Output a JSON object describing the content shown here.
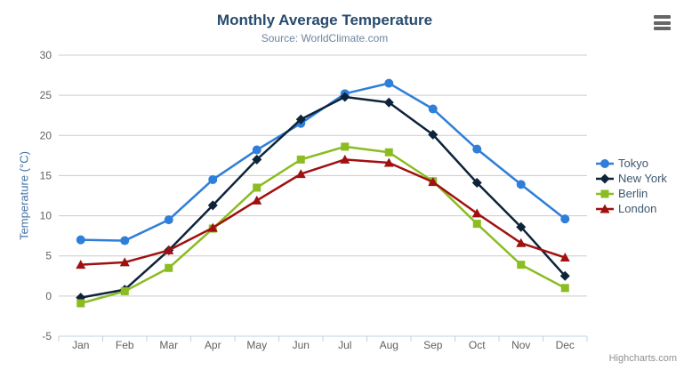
{
  "chart_data": {
    "type": "line",
    "title": "Monthly Average Temperature",
    "subtitle": "Source: WorldClimate.com",
    "xlabel": "",
    "ylabel": "Temperature (°C)",
    "categories": [
      "Jan",
      "Feb",
      "Mar",
      "Apr",
      "May",
      "Jun",
      "Jul",
      "Aug",
      "Sep",
      "Oct",
      "Nov",
      "Dec"
    ],
    "ylim": [
      -5,
      30
    ],
    "ytick_step": 5,
    "grid": true,
    "legend_position": "right",
    "series": [
      {
        "name": "Tokyo",
        "color": "#2f7ed8",
        "marker": "circle",
        "values": [
          7.0,
          6.9,
          9.5,
          14.5,
          18.2,
          21.5,
          25.2,
          26.5,
          23.3,
          18.3,
          13.9,
          9.6
        ]
      },
      {
        "name": "New York",
        "color": "#0d233a",
        "marker": "diamond",
        "values": [
          -0.2,
          0.8,
          5.7,
          11.3,
          17.0,
          22.0,
          24.8,
          24.1,
          20.1,
          14.1,
          8.6,
          2.5
        ]
      },
      {
        "name": "Berlin",
        "color": "#8bbc21",
        "marker": "square",
        "values": [
          -0.9,
          0.6,
          3.5,
          8.4,
          13.5,
          17.0,
          18.6,
          17.9,
          14.3,
          9.0,
          3.9,
          1.0
        ]
      },
      {
        "name": "London",
        "color": "#a01010",
        "marker": "triangle",
        "values": [
          3.9,
          4.2,
          5.7,
          8.5,
          11.9,
          15.2,
          17.0,
          16.6,
          14.2,
          10.3,
          6.6,
          4.8
        ]
      }
    ],
    "colors": {
      "grid_line": "#cccccc",
      "axis_line": "#c0d0e0",
      "tick_label": "#606060",
      "title": "#274b6d",
      "subtitle": "#6d869f",
      "legend_text": "#3e576f",
      "y_axis_title": "#4572a7"
    },
    "credits": "Highcharts.com"
  },
  "menu": {
    "context_button": "chart-context-menu"
  }
}
